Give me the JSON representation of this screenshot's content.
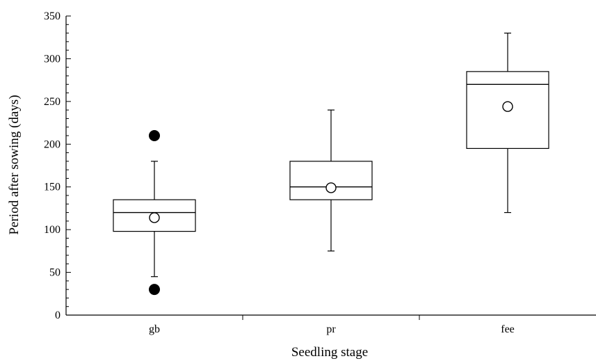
{
  "chart_data": {
    "type": "boxplot",
    "xlabel": "Seedling stage",
    "ylabel": "Period after sowing (days)",
    "ylim": [
      0,
      350
    ],
    "yticks": [
      0,
      50,
      100,
      150,
      200,
      250,
      300,
      350
    ],
    "grid": false,
    "legend": "none",
    "categories": [
      "gb",
      "pr",
      "fee"
    ],
    "boxes": [
      {
        "category": "gb",
        "whisker_low": 45,
        "q1": 98,
        "median": 120,
        "q3": 135,
        "whisker_high": 180,
        "mean": 114,
        "outliers": [
          30,
          210
        ]
      },
      {
        "category": "pr",
        "whisker_low": 75,
        "q1": 135,
        "median": 150,
        "q3": 180,
        "whisker_high": 240,
        "mean": 149,
        "outliers": []
      },
      {
        "category": "fee",
        "whisker_low": 120,
        "q1": 195,
        "median": 270,
        "q3": 285,
        "whisker_high": 330,
        "mean": 244,
        "outliers": []
      }
    ]
  }
}
